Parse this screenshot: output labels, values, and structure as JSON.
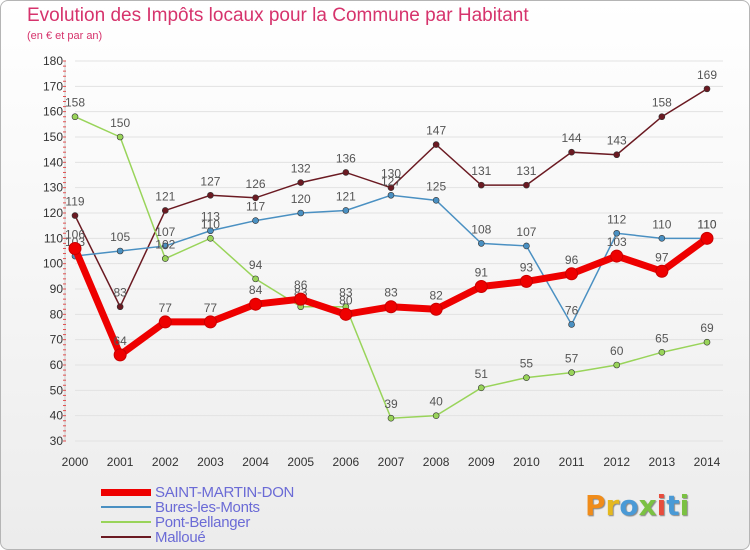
{
  "title": "Evolution des Impôts locaux pour la Commune par Habitant",
  "subtitle": "(en € et par an)",
  "brand": {
    "text": "Proxiti",
    "colors": [
      "#f08c1a",
      "#e5b81f",
      "#4a9ad6",
      "#7bc142",
      "#e84c3d",
      "#4a9ad6",
      "#7bc142"
    ]
  },
  "chart_data": {
    "type": "line",
    "x": [
      2000,
      2001,
      2002,
      2003,
      2004,
      2005,
      2006,
      2007,
      2008,
      2009,
      2010,
      2011,
      2012,
      2013,
      2014
    ],
    "ylim": [
      30,
      180
    ],
    "yticks": [
      30,
      40,
      50,
      60,
      70,
      80,
      90,
      100,
      110,
      120,
      130,
      140,
      150,
      160,
      170,
      180
    ],
    "grid": "horizontal",
    "legend": "bottom-left",
    "series": [
      {
        "name": "Malloué",
        "color": "#6b1a22",
        "width": 1.5,
        "values": [
          119,
          83,
          121,
          127,
          126,
          132,
          136,
          130,
          147,
          131,
          131,
          144,
          143,
          158,
          169
        ]
      },
      {
        "name": "Bures-les-Monts",
        "color": "#4a90c2",
        "width": 1.5,
        "values": [
          103,
          105,
          107,
          113,
          117,
          120,
          121,
          127,
          125,
          108,
          107,
          76,
          112,
          110,
          110
        ]
      },
      {
        "name": "Pont-Bellanger",
        "color": "#99d45a",
        "width": 1.5,
        "values": [
          158,
          150,
          102,
          110,
          94,
          83,
          83,
          39,
          40,
          51,
          55,
          57,
          60,
          65,
          69
        ]
      },
      {
        "name": "SAINT-MARTIN-DON",
        "color": "#ee0000",
        "width": 7,
        "values": [
          106,
          64,
          77,
          77,
          84,
          86,
          80,
          83,
          82,
          91,
          93,
          96,
          103,
          97,
          110
        ]
      }
    ],
    "data_labels": {
      "Malloué": [
        "119",
        "83",
        "121",
        "127",
        "126",
        "132",
        "136",
        "130",
        "147",
        "131",
        "131",
        "144",
        "143",
        "158",
        "169"
      ],
      "Bures-les-Monts": [
        "103",
        "105",
        "107",
        "113",
        "117",
        "120",
        "121",
        "127",
        "125",
        "108",
        "107",
        "76",
        "112",
        "110",
        "110"
      ],
      "Pont-Bellanger": [
        "158",
        "150",
        "102",
        "110",
        "94",
        "83",
        "83",
        "39",
        "40",
        "51",
        "55",
        "57",
        "60",
        "65",
        "69"
      ],
      "SAINT-MARTIN-DON": [
        "106",
        "64",
        "77",
        "77",
        "84",
        "86",
        "80",
        "83",
        "82",
        "91",
        "93",
        "96",
        "103",
        "97",
        "110"
      ]
    }
  },
  "legend_items": [
    {
      "label": "SAINT-MARTIN-DON",
      "color": "#ee0000",
      "thickness": 7
    },
    {
      "label": "Bures-les-Monts",
      "color": "#4a90c2",
      "thickness": 2
    },
    {
      "label": "Pont-Bellanger",
      "color": "#99d45a",
      "thickness": 2
    },
    {
      "label": "Malloué",
      "color": "#6b1a22",
      "thickness": 2
    }
  ]
}
